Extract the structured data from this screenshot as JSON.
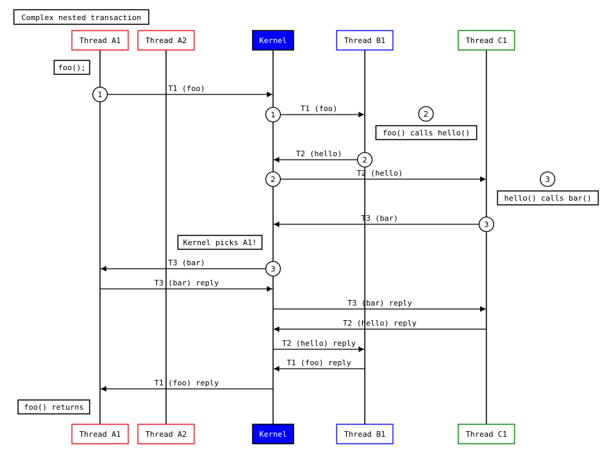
{
  "title": "Complex nested transaction",
  "participants": [
    {
      "id": "A1",
      "label": "Thread A1",
      "border": "#e8202a",
      "fill": "#ffffff",
      "text": "#000000"
    },
    {
      "id": "A2",
      "label": "Thread A2",
      "border": "#e8202a",
      "fill": "#ffffff",
      "text": "#000000"
    },
    {
      "id": "K",
      "label": "Kernel",
      "border": "#000000",
      "fill": "#0000ff",
      "text": "#ffffff"
    },
    {
      "id": "B1",
      "label": "Thread B1",
      "border": "#1a1aee",
      "fill": "#ffffff",
      "text": "#000000"
    },
    {
      "id": "C1",
      "label": "Thread C1",
      "border": "#1a8a1a",
      "fill": "#ffffff",
      "text": "#000000"
    }
  ],
  "messages": [
    {
      "from": "A1",
      "to": "K",
      "label": "T1 (foo)",
      "marker": "1"
    },
    {
      "from": "K",
      "to": "B1",
      "label": "T1 (foo)",
      "marker": "1"
    },
    {
      "from": "B1",
      "to": "K",
      "label": "T2 (hello)",
      "marker": "2"
    },
    {
      "from": "K",
      "to": "C1",
      "label": "T2 (hello)",
      "marker": "2"
    },
    {
      "from": "C1",
      "to": "K",
      "label": "T3 (bar)",
      "marker": "3"
    },
    {
      "from": "K",
      "to": "A1",
      "label": "T3 (bar)",
      "marker": "3"
    },
    {
      "from": "A1",
      "to": "K",
      "label": "T3 (bar) reply",
      "marker": ""
    },
    {
      "from": "K",
      "to": "C1",
      "label": "T3 (bar) reply",
      "marker": ""
    },
    {
      "from": "C1",
      "to": "K",
      "label": "T2 (hello) reply",
      "marker": ""
    },
    {
      "from": "K",
      "to": "B1",
      "label": "T2 (hello) reply",
      "marker": ""
    },
    {
      "from": "B1",
      "to": "K",
      "label": "T1 (foo) reply",
      "marker": ""
    },
    {
      "from": "K",
      "to": "A1",
      "label": "T1 (foo) reply",
      "marker": ""
    }
  ],
  "notes": [
    {
      "text": "foo();",
      "marker": ""
    },
    {
      "text": "foo() calls hello()",
      "marker": "2"
    },
    {
      "text": "hello() calls bar()",
      "marker": "3"
    },
    {
      "text": "Kernel picks A1!",
      "marker": ""
    },
    {
      "text": "foo() returns",
      "marker": ""
    }
  ]
}
